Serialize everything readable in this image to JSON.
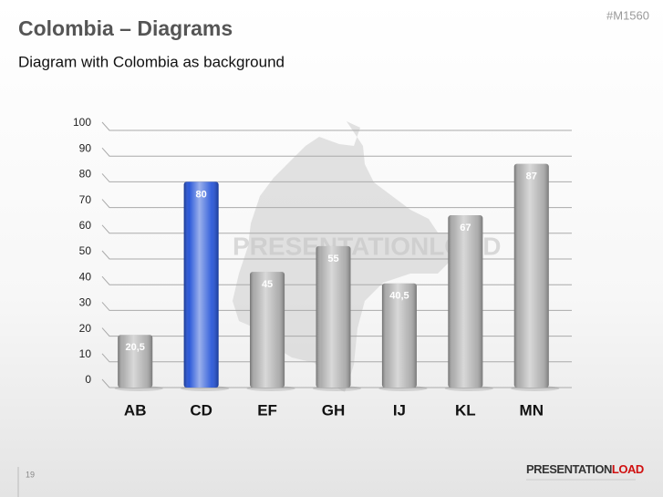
{
  "slide": {
    "title": "Colombia – Diagrams",
    "subtitle": "Diagram with Colombia as background",
    "code": "#M1560",
    "page": "19",
    "logo_a": "PRESENTATION",
    "logo_b": "LOAD",
    "watermark": "PRESENTATIONLOAD"
  },
  "chart_data": {
    "type": "bar",
    "categories": [
      "AB",
      "CD",
      "EF",
      "GH",
      "IJ",
      "KL",
      "MN"
    ],
    "values": [
      20.5,
      80,
      45,
      55,
      40.5,
      67,
      87
    ],
    "value_labels": [
      "20,5",
      "80",
      "45",
      "55",
      "40,5",
      "67",
      "87"
    ],
    "colors": [
      "#a9a9a9",
      "#1f4fd6",
      "#a9a9a9",
      "#a9a9a9",
      "#a9a9a9",
      "#a9a9a9",
      "#a9a9a9"
    ],
    "ylim": [
      0,
      100
    ],
    "yticks": [
      0,
      10,
      20,
      30,
      40,
      50,
      60,
      70,
      80,
      90,
      100
    ],
    "grid": true
  }
}
